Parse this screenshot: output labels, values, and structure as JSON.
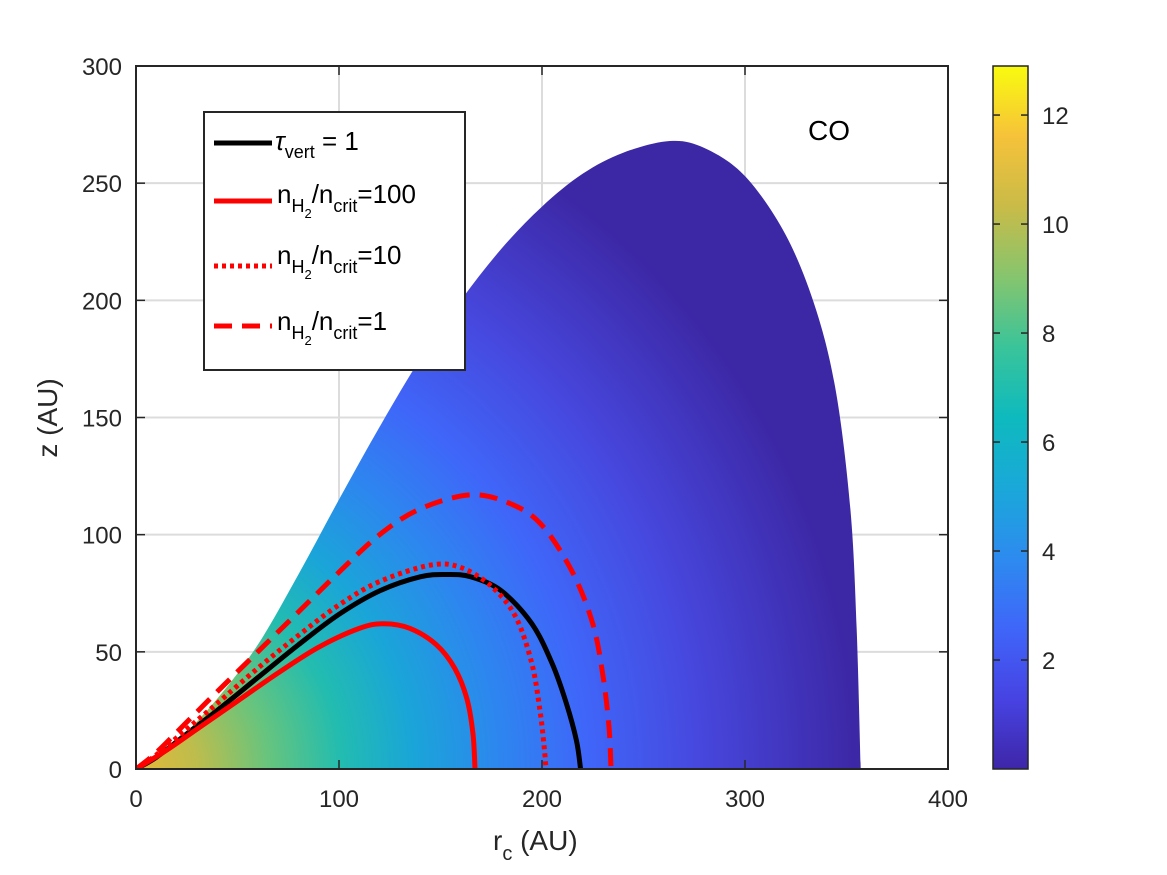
{
  "chart_data": {
    "type": "heatmap",
    "annotation": "CO",
    "xlabel": "r_c (AU)",
    "xlabel_main": "r",
    "xlabel_sub": "c",
    "xlabel_tail": " (AU)",
    "ylabel": "z (AU)",
    "xlim": [
      0,
      400
    ],
    "ylim": [
      0,
      300
    ],
    "xticks": [
      "0",
      "100",
      "200",
      "300",
      "400"
    ],
    "yticks": [
      "0",
      "50",
      "100",
      "150",
      "200",
      "250",
      "300"
    ],
    "grid": true,
    "colorbar": {
      "range": [
        0,
        12.9
      ],
      "ticks": [
        "2",
        "4",
        "6",
        "8",
        "10",
        "12"
      ],
      "colormap": "parula",
      "placement": "right"
    },
    "heatmap_region": {
      "description_values": "color field filling disk region under envelope",
      "peak_value": 12.9,
      "outer_radius_AU": 357,
      "envelope_peak": [
        263,
        268
      ],
      "envelope": [
        [
          0,
          0
        ],
        [
          20,
          12
        ],
        [
          40,
          30
        ],
        [
          60,
          53
        ],
        [
          80,
          83
        ],
        [
          100,
          115
        ],
        [
          120,
          146
        ],
        [
          140,
          175
        ],
        [
          160,
          200
        ],
        [
          180,
          222
        ],
        [
          200,
          240
        ],
        [
          220,
          254
        ],
        [
          240,
          263
        ],
        [
          263,
          268
        ],
        [
          280,
          265
        ],
        [
          300,
          253
        ],
        [
          320,
          228
        ],
        [
          335,
          196
        ],
        [
          345,
          160
        ],
        [
          352,
          110
        ],
        [
          355,
          60
        ],
        [
          357,
          0
        ]
      ]
    },
    "series": [
      {
        "name": "tau_vert = 1",
        "label_main": "τ",
        "label_sub": "vert",
        "label_tail": " = 1",
        "color": "#000000",
        "style": "solid",
        "points": [
          [
            0,
            0
          ],
          [
            10,
            5
          ],
          [
            25,
            15
          ],
          [
            40,
            25
          ],
          [
            60,
            39
          ],
          [
            80,
            53
          ],
          [
            100,
            66
          ],
          [
            120,
            76
          ],
          [
            140,
            82
          ],
          [
            153,
            83
          ],
          [
            165,
            82
          ],
          [
            180,
            76
          ],
          [
            195,
            62
          ],
          [
            205,
            45
          ],
          [
            212,
            28
          ],
          [
            217,
            12
          ],
          [
            219,
            0
          ]
        ]
      },
      {
        "name": "n_H2/n_crit=100",
        "label_parts": [
          "n",
          "H",
          "2",
          "/n",
          "crit",
          "=100"
        ],
        "color": "#ff0000",
        "style": "solid",
        "points": [
          [
            0,
            0
          ],
          [
            15,
            8
          ],
          [
            30,
            17
          ],
          [
            50,
            29
          ],
          [
            70,
            41
          ],
          [
            90,
            52
          ],
          [
            110,
            60
          ],
          [
            122,
            62
          ],
          [
            135,
            60
          ],
          [
            148,
            53
          ],
          [
            157,
            43
          ],
          [
            163,
            30
          ],
          [
            166,
            15
          ],
          [
            167,
            0
          ]
        ]
      },
      {
        "name": "n_H2/n_crit=10",
        "label_parts": [
          "n",
          "H",
          "2",
          "/n",
          "crit",
          "=10"
        ],
        "color": "#ff0000",
        "style": "dotted",
        "points": [
          [
            0,
            0
          ],
          [
            10,
            6
          ],
          [
            25,
            17
          ],
          [
            40,
            28
          ],
          [
            60,
            43
          ],
          [
            80,
            57
          ],
          [
            100,
            70
          ],
          [
            120,
            80
          ],
          [
            145,
            87
          ],
          [
            160,
            86
          ],
          [
            175,
            78
          ],
          [
            187,
            65
          ],
          [
            195,
            45
          ],
          [
            199,
            25
          ],
          [
            201,
            10
          ],
          [
            202,
            0
          ]
        ]
      },
      {
        "name": "n_H2/n_crit=1",
        "label_parts": [
          "n",
          "H",
          "2",
          "/n",
          "crit",
          "=1"
        ],
        "color": "#ff0000",
        "style": "dashed",
        "points": [
          [
            0,
            0
          ],
          [
            10,
            7
          ],
          [
            25,
            20
          ],
          [
            40,
            33
          ],
          [
            60,
            50
          ],
          [
            80,
            67
          ],
          [
            100,
            84
          ],
          [
            120,
            100
          ],
          [
            140,
            111
          ],
          [
            165,
            117
          ],
          [
            185,
            113
          ],
          [
            200,
            104
          ],
          [
            215,
            84
          ],
          [
            225,
            62
          ],
          [
            230,
            40
          ],
          [
            233,
            18
          ],
          [
            234,
            0
          ]
        ]
      }
    ],
    "legend_placement": "top-left"
  }
}
